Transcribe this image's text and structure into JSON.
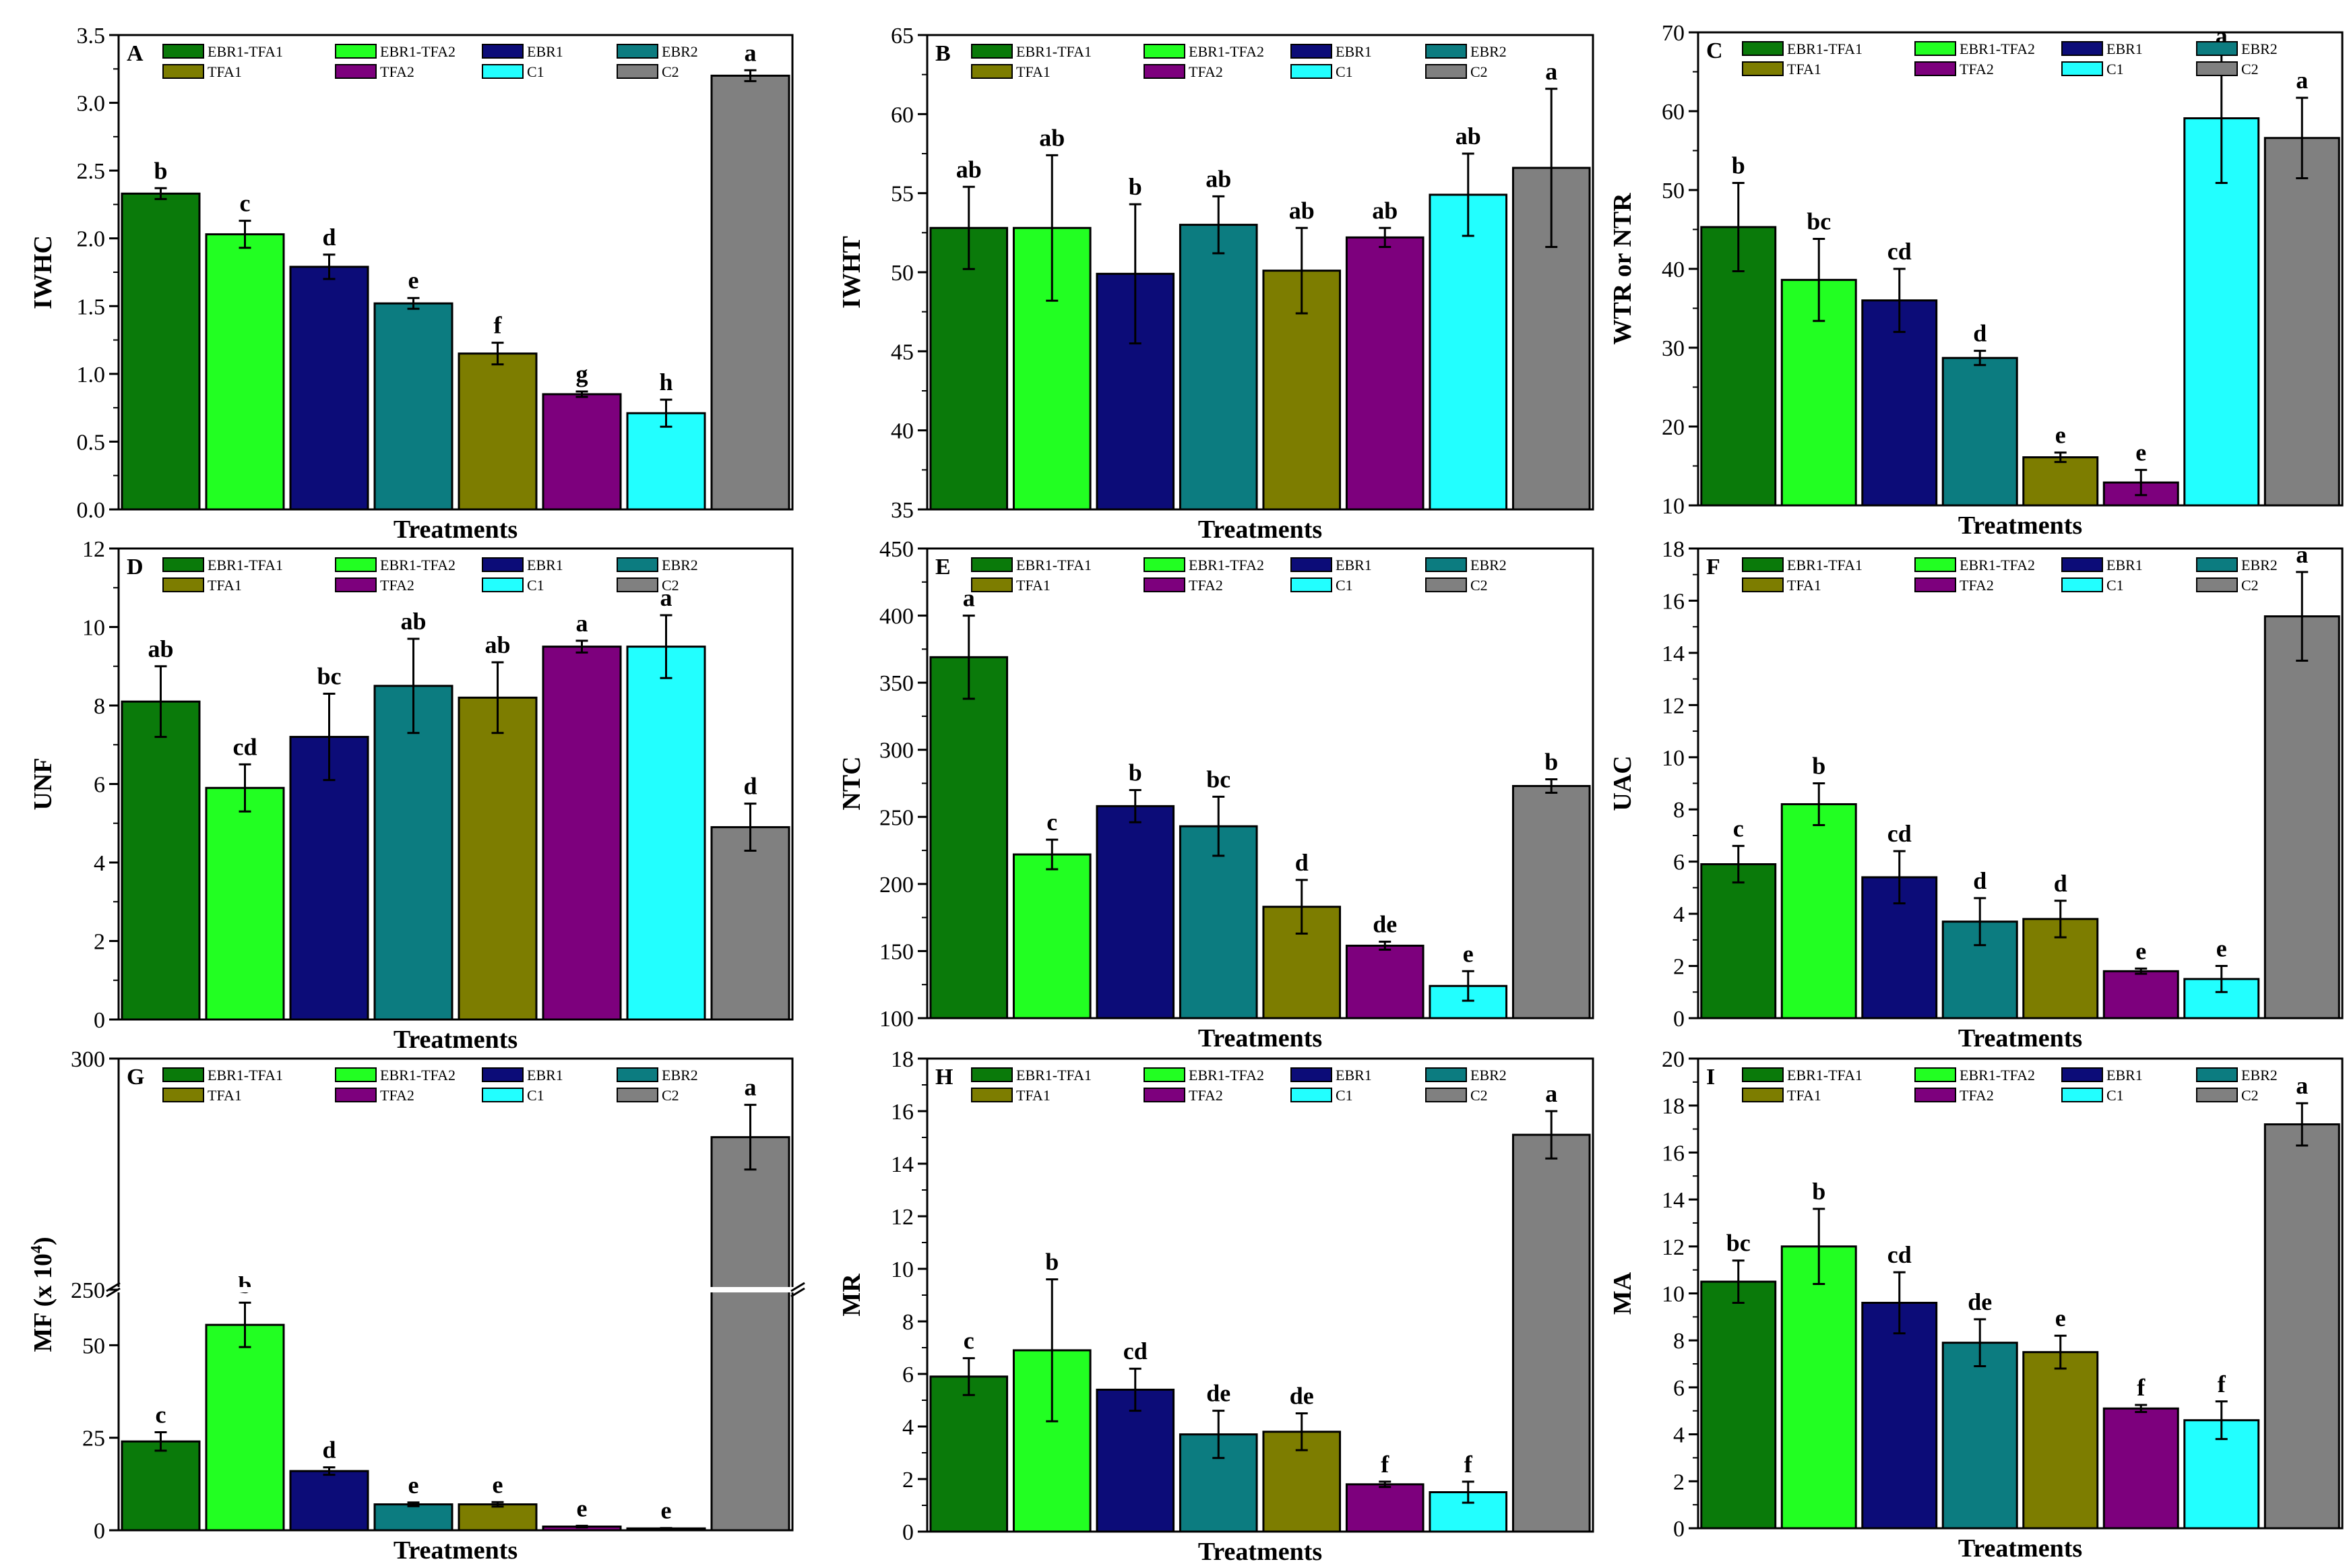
{
  "colors": {
    "EBR1-TFA1": "#0a7a0a",
    "EBR1-TFA2": "#22ff22",
    "EBR1": "#0c0c78",
    "EBR2": "#0c7c80",
    "TFA1": "#7d7d00",
    "TFA2": "#7d007d",
    "C1": "#22ffff",
    "C2": "#808080"
  },
  "legend": [
    "EBR1-TFA1",
    "EBR1-TFA2",
    "EBR1",
    "EBR2",
    "TFA1",
    "TFA2",
    "C1",
    "C2"
  ],
  "chart_data": [
    {
      "type": "bar",
      "letter": "A",
      "ylabel": "IWHC",
      "xlabel": "Treatments",
      "ylim": [
        0,
        3.5
      ],
      "yticks": [
        "0.0",
        "0.5",
        "1.0",
        "1.5",
        "2.0",
        "2.5",
        "3.0",
        "3.5"
      ],
      "categories": [
        "EBR1-TFA1",
        "EBR1-TFA2",
        "EBR1",
        "EBR2",
        "TFA1",
        "TFA2",
        "C1",
        "C2"
      ],
      "values": [
        2.33,
        2.03,
        1.79,
        1.52,
        1.15,
        0.85,
        0.71,
        3.2
      ],
      "errors": [
        0.04,
        0.1,
        0.09,
        0.04,
        0.08,
        0.02,
        0.1,
        0.04
      ],
      "labels": [
        "b",
        "c",
        "d",
        "e",
        "f",
        "g",
        "h",
        "a"
      ]
    },
    {
      "type": "bar",
      "letter": "B",
      "ylabel": "IWHT",
      "xlabel": "Treatments",
      "ylim": [
        35,
        65
      ],
      "yticks": [
        "35",
        "40",
        "45",
        "50",
        "55",
        "60",
        "65"
      ],
      "categories": [
        "EBR1-TFA1",
        "EBR1-TFA2",
        "EBR1",
        "EBR2",
        "TFA1",
        "TFA2",
        "C1",
        "C2"
      ],
      "values": [
        52.8,
        52.8,
        49.9,
        53,
        50.1,
        52.2,
        54.9,
        56.6
      ],
      "errors": [
        2.6,
        4.6,
        4.4,
        1.8,
        2.7,
        0.6,
        2.6,
        5.0
      ],
      "labels": [
        "ab",
        "ab",
        "b",
        "ab",
        "ab",
        "ab",
        "ab",
        "a"
      ]
    },
    {
      "type": "bar",
      "letter": "C",
      "ylabel": "WTR or NTR",
      "xlabel": "Treatments",
      "ylim": [
        10,
        70
      ],
      "yticks": [
        "10",
        "20",
        "30",
        "40",
        "50",
        "60",
        "70"
      ],
      "categories": [
        "EBR1-TFA1",
        "EBR1-TFA2",
        "EBR1",
        "EBR2",
        "TFA1",
        "TFA2",
        "C1",
        "C2"
      ],
      "values": [
        45.3,
        38.6,
        36,
        28.7,
        16.1,
        12.9,
        59.1,
        56.6
      ],
      "errors": [
        5.6,
        5.2,
        4.0,
        0.9,
        0.6,
        1.6,
        8.2,
        5.1
      ],
      "labels": [
        "b",
        "bc",
        "cd",
        "d",
        "e",
        "e",
        "a",
        "a"
      ]
    },
    {
      "type": "bar",
      "letter": "D",
      "ylabel": "UNF",
      "xlabel": "Treatments",
      "ylim": [
        0,
        12
      ],
      "yticks": [
        "0",
        "2",
        "4",
        "6",
        "8",
        "10",
        "12"
      ],
      "categories": [
        "EBR1-TFA1",
        "EBR1-TFA2",
        "EBR1",
        "EBR2",
        "TFA1",
        "TFA2",
        "C1",
        "C2"
      ],
      "values": [
        8.1,
        5.9,
        7.2,
        8.5,
        8.2,
        9.5,
        9.5,
        4.9
      ],
      "errors": [
        0.9,
        0.6,
        1.1,
        1.2,
        0.9,
        0.15,
        0.8,
        0.6
      ],
      "labels": [
        "ab",
        "cd",
        "bc",
        "ab",
        "ab",
        "a",
        "a",
        "d"
      ]
    },
    {
      "type": "bar",
      "letter": "E",
      "ylabel": "NTC",
      "xlabel": "Treatments",
      "ylim": [
        100,
        450
      ],
      "yticks": [
        "100",
        "150",
        "200",
        "250",
        "300",
        "350",
        "400",
        "450"
      ],
      "categories": [
        "EBR1-TFA1",
        "EBR1-TFA2",
        "EBR1",
        "EBR2",
        "TFA1",
        "TFA2",
        "C1",
        "C2"
      ],
      "values": [
        369,
        222,
        258,
        243,
        183,
        154,
        124,
        273
      ],
      "errors": [
        31,
        11,
        12,
        22,
        20,
        3,
        11,
        5
      ],
      "labels": [
        "a",
        "c",
        "b",
        "bc",
        "d",
        "de",
        "e",
        "b"
      ]
    },
    {
      "type": "bar",
      "letter": "F",
      "ylabel": "UAC",
      "xlabel": "Treatments",
      "ylim": [
        0,
        18
      ],
      "yticks": [
        "0",
        "2",
        "4",
        "6",
        "8",
        "10",
        "12",
        "14",
        "16",
        "18"
      ],
      "categories": [
        "EBR1-TFA1",
        "EBR1-TFA2",
        "EBR1",
        "EBR2",
        "TFA1",
        "TFA2",
        "C1",
        "C2"
      ],
      "values": [
        5.9,
        8.2,
        5.4,
        3.7,
        3.8,
        1.8,
        1.5,
        15.4
      ],
      "errors": [
        0.7,
        0.8,
        1.0,
        0.9,
        0.7,
        0.1,
        0.5,
        1.7
      ],
      "labels": [
        "c",
        "b",
        "cd",
        "d",
        "d",
        "e",
        "e",
        "a"
      ]
    },
    {
      "type": "bar",
      "letter": "G",
      "ylabel": "MF (x 10",
      "ylabel_sup": "4",
      "ylabel_end": ")",
      "xlabel": "Treatments",
      "axis_break": [
        65,
        250
      ],
      "ylim": [
        0,
        300
      ],
      "yticks": [
        "0",
        "25",
        "50",
        "250",
        "300"
      ],
      "categories": [
        "EBR1-TFA1",
        "EBR1-TFA2",
        "EBR1",
        "EBR2",
        "TFA1",
        "TFA2",
        "C1",
        "C2"
      ],
      "values": [
        24,
        55.5,
        16,
        7,
        7,
        1,
        0.5,
        283
      ],
      "errors": [
        2.5,
        6,
        1,
        0.5,
        0.6,
        0.2,
        0.1,
        7
      ],
      "labels": [
        "c",
        "b",
        "d",
        "e",
        "e",
        "e",
        "e",
        "a"
      ]
    },
    {
      "type": "bar",
      "letter": "H",
      "ylabel": "MR",
      "xlabel": "Treatments",
      "ylim": [
        0,
        18
      ],
      "yticks": [
        "0",
        "2",
        "4",
        "6",
        "8",
        "10",
        "12",
        "14",
        "16",
        "18"
      ],
      "categories": [
        "EBR1-TFA1",
        "EBR1-TFA2",
        "EBR1",
        "EBR2",
        "TFA1",
        "TFA2",
        "C1",
        "C2"
      ],
      "values": [
        5.9,
        6.9,
        5.4,
        3.7,
        3.8,
        1.8,
        1.5,
        15.1
      ],
      "errors": [
        0.7,
        2.7,
        0.8,
        0.9,
        0.7,
        0.1,
        0.4,
        0.9
      ],
      "labels": [
        "c",
        "b",
        "cd",
        "de",
        "de",
        "f",
        "f",
        "a"
      ]
    },
    {
      "type": "bar",
      "letter": "I",
      "ylabel": "MA",
      "xlabel": "Treatments",
      "ylim": [
        0,
        20
      ],
      "yticks": [
        "0",
        "2",
        "4",
        "6",
        "8",
        "10",
        "12",
        "14",
        "16",
        "18",
        "20"
      ],
      "categories": [
        "EBR1-TFA1",
        "EBR1-TFA2",
        "EBR1",
        "EBR2",
        "TFA1",
        "TFA2",
        "C1",
        "C2"
      ],
      "values": [
        10.5,
        12,
        9.6,
        7.9,
        7.5,
        5.1,
        4.6,
        17.2
      ],
      "errors": [
        0.9,
        1.6,
        1.3,
        1.0,
        0.7,
        0.15,
        0.8,
        0.9
      ],
      "labels": [
        "bc",
        "b",
        "cd",
        "de",
        "e",
        "f",
        "f",
        "a"
      ]
    }
  ]
}
